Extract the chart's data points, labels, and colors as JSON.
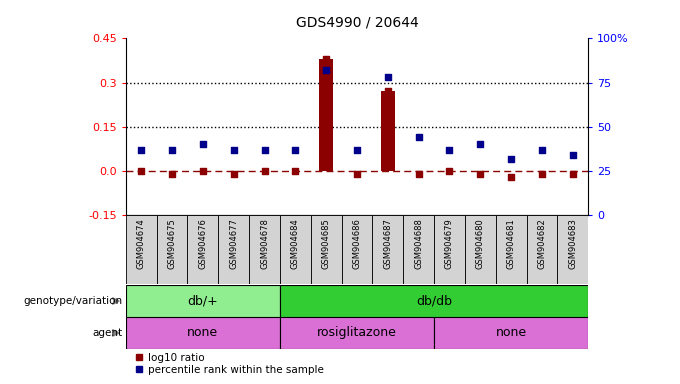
{
  "title": "GDS4990 / 20644",
  "samples": [
    "GSM904674",
    "GSM904675",
    "GSM904676",
    "GSM904677",
    "GSM904678",
    "GSM904684",
    "GSM904685",
    "GSM904686",
    "GSM904687",
    "GSM904688",
    "GSM904679",
    "GSM904680",
    "GSM904681",
    "GSM904682",
    "GSM904683"
  ],
  "log10_ratio": [
    0.0,
    -0.01,
    0.0,
    -0.01,
    0.0,
    0.0,
    0.38,
    -0.01,
    0.27,
    -0.01,
    0.0,
    -0.01,
    -0.02,
    -0.01,
    -0.01
  ],
  "percentile_rank": [
    37,
    37,
    40,
    37,
    37,
    37,
    82,
    37,
    78,
    44,
    37,
    40,
    32,
    37,
    34
  ],
  "ylim_left": [
    -0.15,
    0.45
  ],
  "ylim_right": [
    0,
    100
  ],
  "yticks_left": [
    -0.15,
    0.0,
    0.15,
    0.3,
    0.45
  ],
  "yticks_right": [
    0,
    25,
    50,
    75,
    100
  ],
  "ytick_labels_right": [
    "0",
    "25",
    "50",
    "75",
    "100%"
  ],
  "hlines": [
    0.15,
    0.3
  ],
  "genotype_groups": [
    {
      "label": "db/+",
      "start": 0,
      "end": 5,
      "color": "#90EE90"
    },
    {
      "label": "db/db",
      "start": 5,
      "end": 15,
      "color": "#32CD32"
    }
  ],
  "agent_groups": [
    {
      "label": "none",
      "start": 0,
      "end": 5
    },
    {
      "label": "rosiglitazone",
      "start": 5,
      "end": 10
    },
    {
      "label": "none",
      "start": 10,
      "end": 15
    }
  ],
  "agent_color": "#DA70D6",
  "bar_color": "#8B0000",
  "dot_color": "#00008B",
  "dashed_line_color": "#8B0000",
  "background_color": "#FFFFFF",
  "sample_bg_color": "#D3D3D3",
  "title_fontsize": 10,
  "axis_fontsize": 8,
  "bar_threshold": 0.02
}
